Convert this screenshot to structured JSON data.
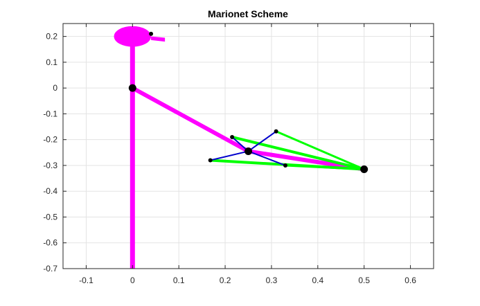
{
  "chart_data": {
    "type": "line",
    "title": "Marionet Scheme",
    "xlabel": "",
    "ylabel": "",
    "xlim": [
      -0.15,
      0.65
    ],
    "ylim": [
      -0.7,
      0.25
    ],
    "grid": true,
    "x_ticks": [
      -0.1,
      0,
      0.1,
      0.2,
      0.3,
      0.4,
      0.5,
      0.6
    ],
    "x_tick_labels": [
      "-0.1",
      "0",
      "0.1",
      "0.2",
      "0.3",
      "0.4",
      "0.5",
      "0.6"
    ],
    "y_ticks": [
      0.2,
      0.1,
      0,
      -0.1,
      -0.2,
      -0.3,
      -0.4,
      -0.5,
      -0.6,
      -0.7
    ],
    "y_tick_labels": [
      "0.2",
      "0.1",
      "0",
      "-0.1",
      "-0.2",
      "-0.3",
      "-0.4",
      "-0.5",
      "-0.6",
      "-0.7"
    ],
    "colors": {
      "body": "#ff00ff",
      "strings": "#00ff00",
      "control_bar": "#0000cc",
      "joints": "#000000",
      "grid": "#e3e3e3",
      "axes": "#262626"
    },
    "head": {
      "center": [
        0,
        0.2
      ],
      "radius": 0.04
    },
    "eye": [
      0.04,
      0.21
    ],
    "beak": {
      "x": [
        0.04,
        0.07,
        0.07,
        0.04
      ],
      "y": [
        0.2,
        0.195,
        0.18,
        0.186
      ]
    },
    "series": [
      {
        "role": "body",
        "x": [
          0,
          0
        ],
        "y": [
          0.165,
          -0.7
        ],
        "width": 7
      },
      {
        "role": "body",
        "x": [
          0,
          0.25,
          0.5
        ],
        "y": [
          0,
          -0.245,
          -0.315
        ],
        "width": 6
      },
      {
        "role": "strings",
        "x": [
          0.215,
          0.5
        ],
        "y": [
          -0.19,
          -0.315
        ],
        "width": 4
      },
      {
        "role": "strings",
        "x": [
          0.31,
          0.5
        ],
        "y": [
          -0.168,
          -0.315
        ],
        "width": 3
      },
      {
        "role": "strings",
        "x": [
          0.168,
          0.5
        ],
        "y": [
          -0.28,
          -0.315
        ],
        "width": 4
      },
      {
        "role": "strings",
        "x": [
          0.33,
          0.5
        ],
        "y": [
          -0.3,
          -0.315
        ],
        "width": 3
      },
      {
        "role": "control_bar",
        "x": [
          0.215,
          0.25,
          0.33
        ],
        "y": [
          -0.19,
          -0.245,
          -0.3
        ],
        "width": 2
      },
      {
        "role": "control_bar",
        "x": [
          0.168,
          0.25,
          0.31
        ],
        "y": [
          -0.28,
          -0.245,
          -0.168
        ],
        "width": 2
      }
    ],
    "joints": [
      {
        "x": 0,
        "y": 0,
        "size": "large"
      },
      {
        "x": 0.25,
        "y": -0.245,
        "size": "large"
      },
      {
        "x": 0.5,
        "y": -0.315,
        "size": "large"
      },
      {
        "x": 0.215,
        "y": -0.19,
        "size": "small"
      },
      {
        "x": 0.31,
        "y": -0.168,
        "size": "small"
      },
      {
        "x": 0.168,
        "y": -0.28,
        "size": "small"
      },
      {
        "x": 0.33,
        "y": -0.3,
        "size": "small"
      },
      {
        "x": 0.04,
        "y": 0.21,
        "size": "small"
      }
    ]
  }
}
